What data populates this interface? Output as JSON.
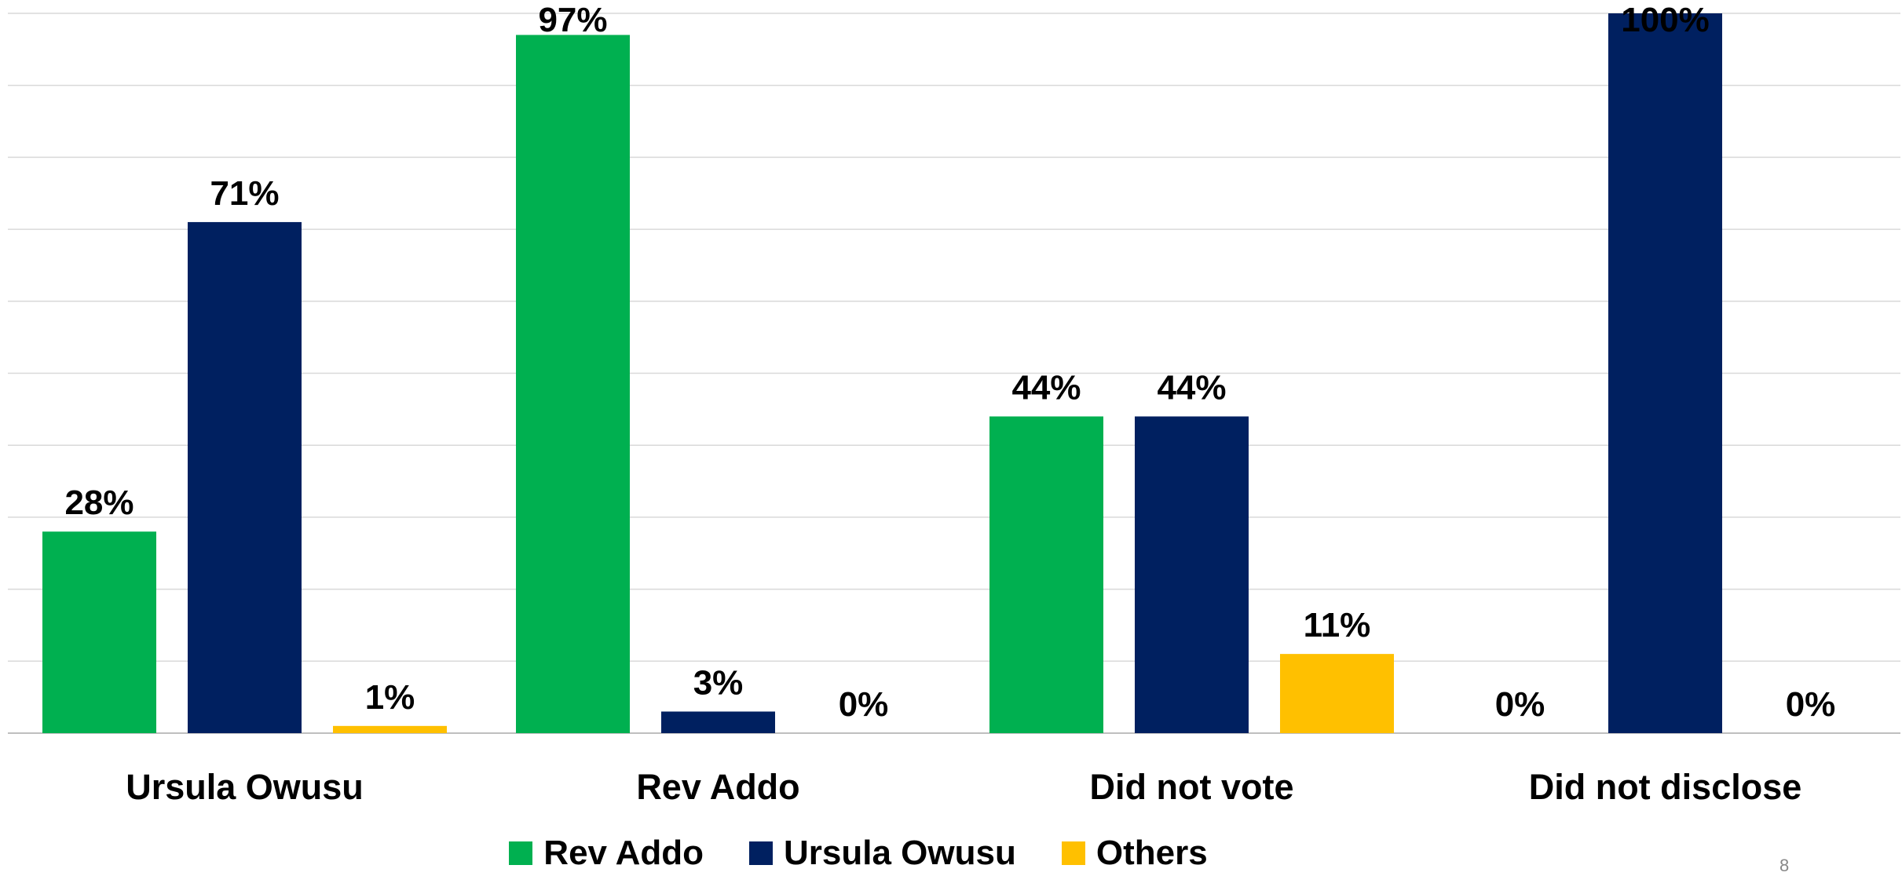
{
  "chart_data": {
    "type": "bar",
    "categories": [
      "Ursula Owusu",
      "Rev Addo",
      "Did not vote",
      "Did not disclose"
    ],
    "series": [
      {
        "name": "Rev Addo",
        "color": "#00B050",
        "values": [
          28,
          97,
          44,
          0
        ],
        "labels": [
          "28%",
          "97%",
          "44%",
          "0%"
        ]
      },
      {
        "name": "Ursula Owusu",
        "color": "#002060",
        "values": [
          71,
          3,
          44,
          100
        ],
        "labels": [
          "71%",
          "3%",
          "44%",
          "100%"
        ]
      },
      {
        "name": "Others",
        "color": "#FFC000",
        "values": [
          1,
          0,
          11,
          0
        ],
        "labels": [
          "1%",
          "0%",
          "11%",
          "0%"
        ]
      }
    ],
    "ylim": [
      0,
      100
    ],
    "grid": true,
    "legend_position": "bottom",
    "value_label_suffix": "%",
    "title": "",
    "xlabel": "",
    "ylabel": ""
  },
  "footer": {
    "mark": "8"
  }
}
